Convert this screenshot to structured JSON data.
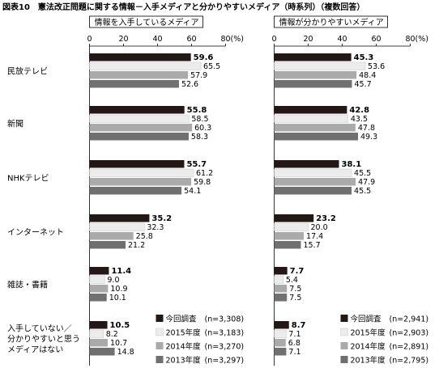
{
  "title": "図表10　憲法改正問題に関する情報－入手メディアと分かりやすいメディア（時系列）（複数回答）",
  "axis": {
    "ticks": [
      0,
      20,
      40,
      60,
      80
    ],
    "tick_labels": [
      "0",
      "20",
      "40",
      "60",
      "80"
    ],
    "unit_label": "(%)"
  },
  "colors": {
    "今回調査": "#231815",
    "2015年度": "#ececec",
    "2014年度": "#aaaaaa",
    "2013年度": "#707070"
  },
  "chart_data": [
    {
      "type": "bar",
      "orientation": "horizontal",
      "title": "情報を入手しているメディア",
      "xlim": [
        0,
        80
      ],
      "categories": [
        "民放テレビ",
        "新聞",
        "NHKテレビ",
        "インターネット",
        "雑誌・書籍",
        "入手していない／分かりやすいと思うメディアはない"
      ],
      "category_lines": [
        [
          "民放テレビ"
        ],
        [
          "新聞"
        ],
        [
          "NHKテレビ"
        ],
        [
          "インターネット"
        ],
        [
          "雑誌・書籍"
        ],
        [
          "入手していない／",
          "分かりやすいと思う",
          "メディアはない"
        ]
      ],
      "series": [
        {
          "name": "今回調査",
          "values": [
            59.6,
            55.8,
            55.7,
            35.2,
            11.4,
            10.5
          ]
        },
        {
          "name": "2015年度",
          "values": [
            65.5,
            58.5,
            61.2,
            32.3,
            9.0,
            8.2
          ]
        },
        {
          "name": "2014年度",
          "values": [
            57.9,
            60.3,
            59.8,
            25.8,
            10.9,
            10.7
          ]
        },
        {
          "name": "2013年度",
          "values": [
            52.6,
            58.3,
            54.1,
            21.2,
            10.1,
            14.8
          ]
        }
      ],
      "legend": [
        {
          "label": "今回調査",
          "n": "(n=3,308)"
        },
        {
          "label": "2015年度",
          "n": "(n=3,183)"
        },
        {
          "label": "2014年度",
          "n": "(n=3,270)"
        },
        {
          "label": "2013年度",
          "n": "(n=3,297)"
        }
      ]
    },
    {
      "type": "bar",
      "orientation": "horizontal",
      "title": "情報が分かりやすいメディア",
      "xlim": [
        0,
        80
      ],
      "categories": [
        "民放テレビ",
        "新聞",
        "NHKテレビ",
        "インターネット",
        "雑誌・書籍",
        "入手していない／分かりやすいと思うメディアはない"
      ],
      "series": [
        {
          "name": "今回調査",
          "values": [
            45.3,
            42.8,
            38.1,
            23.2,
            7.7,
            8.7
          ]
        },
        {
          "name": "2015年度",
          "values": [
            53.6,
            43.5,
            45.5,
            20.0,
            5.4,
            7.1
          ]
        },
        {
          "name": "2014年度",
          "values": [
            48.4,
            47.8,
            47.9,
            17.4,
            7.5,
            6.8
          ]
        },
        {
          "name": "2013年度",
          "values": [
            45.7,
            49.3,
            45.5,
            15.7,
            7.5,
            7.1
          ]
        }
      ],
      "legend": [
        {
          "label": "今回調査",
          "n": "(n=2,941)"
        },
        {
          "label": "2015年度",
          "n": "(n=2,903)"
        },
        {
          "label": "2014年度",
          "n": "(n=2,891)"
        },
        {
          "label": "2013年度",
          "n": "(n=2,795)"
        }
      ]
    }
  ]
}
